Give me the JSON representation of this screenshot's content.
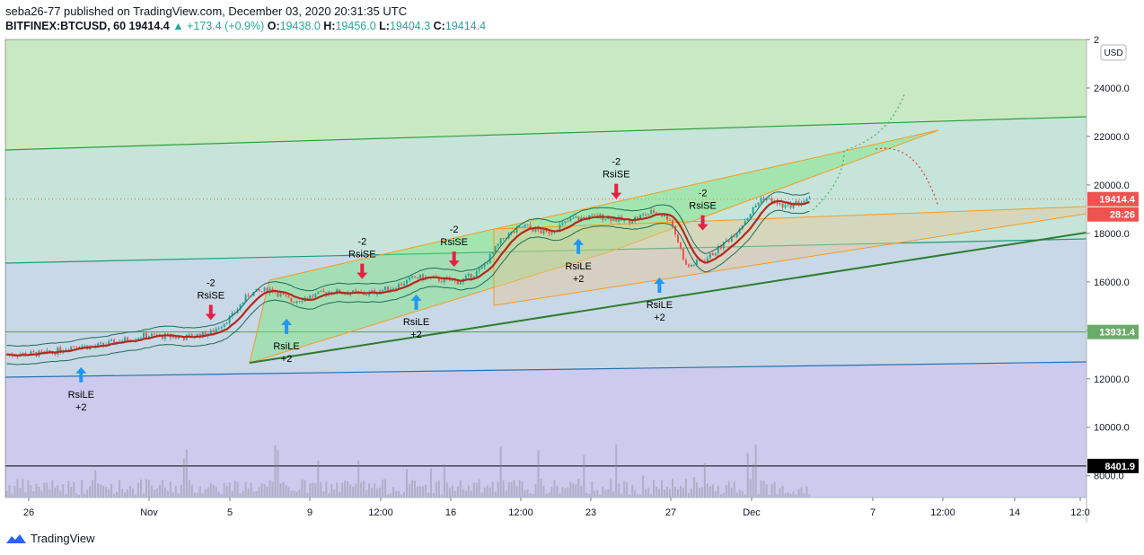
{
  "header": {
    "publisher_line": "seba26-77 published on TradingView.com, December 03, 2020 20:31:35 UTC",
    "symbol": "BITFINEX:BTCUSD, 60",
    "last": "19414.4",
    "change": "+173.4 (+0.9%)",
    "o_label": "O:",
    "o": "19438.0",
    "h_label": "H:",
    "h": "19456.0",
    "l_label": "L:",
    "l": "19404.3",
    "c_label": "C:",
    "c": "19414.4"
  },
  "currency_button": "USD",
  "price_labels": {
    "last_price": "19414.4",
    "countdown": "28:26",
    "level_mid": "13931.4",
    "level_low": "8401.9"
  },
  "footer": {
    "brand": "TradingView"
  },
  "colors": {
    "up": "#26a69a",
    "down": "#ef5350",
    "signal_long": "#2196f3",
    "signal_short": "#e91e43",
    "zone_top": "#c9e9c3",
    "zone_mid": "#c6e4da",
    "zone_low": "#c8d8e6",
    "zone_bottom": "#cccbee"
  },
  "chart_data": {
    "type": "candlestick",
    "x_tick_labels": [
      "26",
      "Nov",
      "5",
      "9",
      "12:00",
      "16",
      "12:00",
      "23",
      "27",
      "Dec",
      "7",
      "12:00",
      "14",
      "12:0"
    ],
    "y_tick_labels": [
      "8000.0",
      "10000.0",
      "12000.0",
      "14000.0",
      "16000.0",
      "18000.0",
      "20000.0",
      "22000.0",
      "24000.0",
      "2"
    ],
    "y_range": [
      7100,
      26000
    ],
    "price_path": [
      [
        0,
        13000
      ],
      [
        0.04,
        13050
      ],
      [
        0.065,
        13400
      ],
      [
        0.08,
        13300
      ],
      [
        0.1,
        13500
      ],
      [
        0.13,
        13800
      ],
      [
        0.165,
        13700
      ],
      [
        0.19,
        13900
      ],
      [
        0.21,
        14600
      ],
      [
        0.225,
        15500
      ],
      [
        0.245,
        15700
      ],
      [
        0.265,
        15200
      ],
      [
        0.3,
        15600
      ],
      [
        0.335,
        15500
      ],
      [
        0.36,
        15800
      ],
      [
        0.38,
        16200
      ],
      [
        0.4,
        16100
      ],
      [
        0.42,
        16000
      ],
      [
        0.44,
        16500
      ],
      [
        0.46,
        17800
      ],
      [
        0.48,
        18300
      ],
      [
        0.5,
        18000
      ],
      [
        0.525,
        18600
      ],
      [
        0.55,
        18700
      ],
      [
        0.575,
        18500
      ],
      [
        0.6,
        18900
      ],
      [
        0.615,
        18600
      ],
      [
        0.63,
        16600
      ],
      [
        0.65,
        17000
      ],
      [
        0.675,
        18000
      ],
      [
        0.7,
        19500
      ],
      [
        0.72,
        19100
      ],
      [
        0.745,
        19414
      ]
    ],
    "signals": [
      {
        "type": "long",
        "label": "RsiLE",
        "qty": "+2",
        "x": 0.07,
        "price": 13000
      },
      {
        "type": "short",
        "label": "RsiSE",
        "qty": "-2",
        "x": 0.19,
        "price": 13900
      },
      {
        "type": "long",
        "label": "RsiLE",
        "qty": "+2",
        "x": 0.26,
        "price": 15000
      },
      {
        "type": "short",
        "label": "RsiSE",
        "qty": "-2",
        "x": 0.33,
        "price": 15600
      },
      {
        "type": "long",
        "label": "RsiLE",
        "qty": "+2",
        "x": 0.38,
        "price": 16000
      },
      {
        "type": "short",
        "label": "RsiSE",
        "qty": "-2",
        "x": 0.415,
        "price": 16100
      },
      {
        "type": "long",
        "label": "RsiLE",
        "qty": "+2",
        "x": 0.53,
        "price": 18300
      },
      {
        "type": "short",
        "label": "RsiSE",
        "qty": "-2",
        "x": 0.565,
        "price": 18900
      },
      {
        "type": "long",
        "label": "RsiLE",
        "qty": "+2",
        "x": 0.605,
        "price": 16700
      },
      {
        "type": "short",
        "label": "RsiSE",
        "qty": "-2",
        "x": 0.645,
        "price": 17600
      }
    ],
    "horizontal_levels": [
      13931.4,
      8401.9
    ],
    "last_price": 19414.4,
    "ylabel": "USD"
  }
}
